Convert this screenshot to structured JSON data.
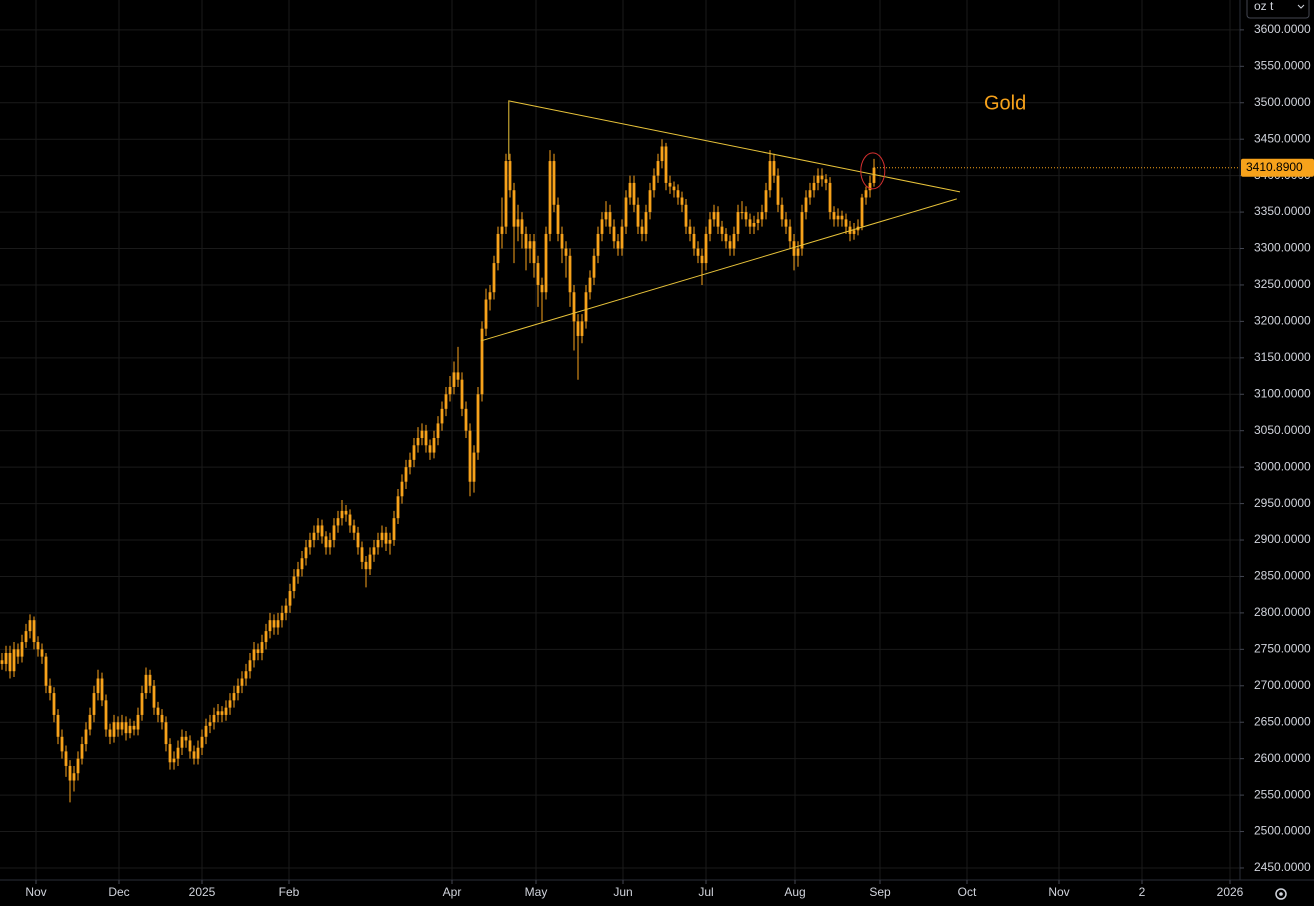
{
  "chart_data": {
    "type": "candlestick",
    "unit": "oz t",
    "annotation": "Gold",
    "color": "#f7a21b",
    "grid": true,
    "last_value_label": "3410.8900",
    "xlim": [
      0,
      310
    ],
    "ylim": [
      2433.5,
      3641
    ],
    "xticks": [
      {
        "value": 9,
        "label": "Nov"
      },
      {
        "value": 29.75,
        "label": "Dec"
      },
      {
        "value": 50.5,
        "label": "2025"
      },
      {
        "value": 72.25,
        "label": "Feb"
      },
      {
        "value": 113,
        "label": "Apr"
      },
      {
        "value": 134,
        "label": "May"
      },
      {
        "value": 155.75,
        "label": "Jun"
      },
      {
        "value": 176.5,
        "label": "Jul"
      },
      {
        "value": 198.75,
        "label": "Aug"
      },
      {
        "value": 220,
        "label": "Sep"
      },
      {
        "value": 241.75,
        "label": "Oct"
      },
      {
        "value": 264.75,
        "label": "Nov"
      },
      {
        "value": 285.5,
        "label": "2"
      },
      {
        "value": 307.5,
        "label": "2026"
      }
    ],
    "yticks": [
      {
        "value": 2450,
        "label": "2450.0000"
      },
      {
        "value": 2500,
        "label": "2500.0000"
      },
      {
        "value": 2550,
        "label": "2550.0000"
      },
      {
        "value": 2600,
        "label": "2600.0000"
      },
      {
        "value": 2650,
        "label": "2650.0000"
      },
      {
        "value": 2700,
        "label": "2700.0000"
      },
      {
        "value": 2750,
        "label": "2750.0000"
      },
      {
        "value": 2800,
        "label": "2800.0000"
      },
      {
        "value": 2850,
        "label": "2850.0000"
      },
      {
        "value": 2900,
        "label": "2900.0000"
      },
      {
        "value": 2950,
        "label": "2950.0000"
      },
      {
        "value": 3000,
        "label": "3000.0000"
      },
      {
        "value": 3050,
        "label": "3050.0000"
      },
      {
        "value": 3100,
        "label": "3100.0000"
      },
      {
        "value": 3150,
        "label": "3150.0000"
      },
      {
        "value": 3200,
        "label": "3200.0000"
      },
      {
        "value": 3250,
        "label": "3250.0000"
      },
      {
        "value": 3300,
        "label": "3300.0000"
      },
      {
        "value": 3350,
        "label": "3350.0000"
      },
      {
        "value": 3400,
        "label": "3400.0000"
      },
      {
        "value": 3450,
        "label": "3450.0000"
      },
      {
        "value": 3500,
        "label": "3500.0000"
      },
      {
        "value": 3550,
        "label": "3550.0000"
      },
      {
        "value": 3600,
        "label": "3600.0000"
      }
    ],
    "trendlines": [
      {
        "color": "#e8c33a",
        "x": [
          127.2,
          127.2,
          240
        ],
        "y": [
          3421.6,
          3502.6,
          3377.7
        ]
      },
      {
        "color": "#e8c33a",
        "x": [
          120.2,
          239.2
        ],
        "y": [
          3173.2,
          3368.1
        ]
      }
    ],
    "highlight": {
      "color": "#d32f2f",
      "x": 218.2,
      "y": 3406.5
    },
    "values": [
      [
        2735,
        2745,
        2722,
        2730
      ],
      [
        2730,
        2755,
        2720,
        2745
      ],
      [
        2745,
        2755,
        2710,
        2720
      ],
      [
        2720,
        2760,
        2712,
        2750
      ],
      [
        2750,
        2758,
        2730,
        2740
      ],
      [
        2740,
        2770,
        2732,
        2760
      ],
      [
        2760,
        2785,
        2752,
        2775
      ],
      [
        2775,
        2798,
        2765,
        2790
      ],
      [
        2790,
        2795,
        2750,
        2760
      ],
      [
        2760,
        2768,
        2740,
        2750
      ],
      [
        2750,
        2758,
        2730,
        2740
      ],
      [
        2740,
        2745,
        2690,
        2700
      ],
      [
        2700,
        2710,
        2680,
        2690
      ],
      [
        2690,
        2698,
        2650,
        2660
      ],
      [
        2660,
        2668,
        2620,
        2630
      ],
      [
        2630,
        2640,
        2600,
        2610
      ],
      [
        2610,
        2618,
        2575,
        2590
      ],
      [
        2590,
        2598,
        2540,
        2570
      ],
      [
        2570,
        2590,
        2555,
        2580
      ],
      [
        2580,
        2610,
        2570,
        2600
      ],
      [
        2600,
        2630,
        2592,
        2620
      ],
      [
        2620,
        2650,
        2610,
        2640
      ],
      [
        2640,
        2670,
        2632,
        2660
      ],
      [
        2660,
        2700,
        2650,
        2690
      ],
      [
        2690,
        2722,
        2680,
        2710
      ],
      [
        2710,
        2718,
        2672,
        2680
      ],
      [
        2680,
        2688,
        2630,
        2640
      ],
      [
        2640,
        2648,
        2620,
        2630
      ],
      [
        2630,
        2660,
        2622,
        2650
      ],
      [
        2650,
        2658,
        2630,
        2640
      ],
      [
        2640,
        2660,
        2632,
        2650
      ],
      [
        2650,
        2658,
        2625,
        2635
      ],
      [
        2635,
        2655,
        2628,
        2645
      ],
      [
        2645,
        2652,
        2632,
        2640
      ],
      [
        2640,
        2670,
        2632,
        2660
      ],
      [
        2660,
        2700,
        2652,
        2690
      ],
      [
        2690,
        2725,
        2682,
        2715
      ],
      [
        2715,
        2722,
        2690,
        2700
      ],
      [
        2700,
        2708,
        2660,
        2670
      ],
      [
        2670,
        2678,
        2650,
        2660
      ],
      [
        2660,
        2668,
        2640,
        2650
      ],
      [
        2650,
        2658,
        2610,
        2620
      ],
      [
        2620,
        2628,
        2585,
        2595
      ],
      [
        2595,
        2610,
        2585,
        2600
      ],
      [
        2600,
        2625,
        2590,
        2615
      ],
      [
        2615,
        2640,
        2605,
        2630
      ],
      [
        2630,
        2638,
        2615,
        2625
      ],
      [
        2625,
        2632,
        2600,
        2610
      ],
      [
        2610,
        2618,
        2592,
        2600
      ],
      [
        2600,
        2625,
        2592,
        2615
      ],
      [
        2615,
        2640,
        2605,
        2630
      ],
      [
        2630,
        2655,
        2620,
        2645
      ],
      [
        2645,
        2660,
        2635,
        2650
      ],
      [
        2650,
        2670,
        2640,
        2660
      ],
      [
        2660,
        2675,
        2650,
        2665
      ],
      [
        2665,
        2672,
        2650,
        2660
      ],
      [
        2660,
        2680,
        2652,
        2670
      ],
      [
        2670,
        2690,
        2660,
        2680
      ],
      [
        2680,
        2700,
        2670,
        2690
      ],
      [
        2690,
        2710,
        2680,
        2700
      ],
      [
        2700,
        2720,
        2690,
        2710
      ],
      [
        2710,
        2730,
        2700,
        2720
      ],
      [
        2720,
        2745,
        2710,
        2735
      ],
      [
        2735,
        2760,
        2725,
        2750
      ],
      [
        2750,
        2758,
        2735,
        2745
      ],
      [
        2745,
        2770,
        2735,
        2760
      ],
      [
        2760,
        2785,
        2750,
        2775
      ],
      [
        2775,
        2800,
        2765,
        2790
      ],
      [
        2790,
        2798,
        2770,
        2780
      ],
      [
        2780,
        2800,
        2770,
        2790
      ],
      [
        2790,
        2810,
        2780,
        2800
      ],
      [
        2800,
        2820,
        2790,
        2810
      ],
      [
        2810,
        2840,
        2800,
        2830
      ],
      [
        2830,
        2860,
        2820,
        2850
      ],
      [
        2850,
        2870,
        2840,
        2860
      ],
      [
        2860,
        2885,
        2850,
        2875
      ],
      [
        2875,
        2900,
        2865,
        2890
      ],
      [
        2890,
        2910,
        2880,
        2900
      ],
      [
        2900,
        2920,
        2890,
        2910
      ],
      [
        2910,
        2930,
        2900,
        2920
      ],
      [
        2920,
        2928,
        2895,
        2905
      ],
      [
        2905,
        2912,
        2880,
        2890
      ],
      [
        2890,
        2910,
        2880,
        2900
      ],
      [
        2900,
        2930,
        2890,
        2920
      ],
      [
        2920,
        2940,
        2910,
        2930
      ],
      [
        2930,
        2955,
        2920,
        2940
      ],
      [
        2940,
        2948,
        2925,
        2935
      ],
      [
        2935,
        2942,
        2910,
        2920
      ],
      [
        2920,
        2928,
        2900,
        2910
      ],
      [
        2910,
        2918,
        2880,
        2890
      ],
      [
        2890,
        2898,
        2860,
        2870
      ],
      [
        2870,
        2878,
        2835,
        2860
      ],
      [
        2860,
        2890,
        2852,
        2880
      ],
      [
        2880,
        2900,
        2870,
        2890
      ],
      [
        2890,
        2910,
        2880,
        2900
      ],
      [
        2900,
        2920,
        2890,
        2910
      ],
      [
        2910,
        2918,
        2885,
        2895
      ],
      [
        2895,
        2910,
        2880,
        2900
      ],
      [
        2900,
        2940,
        2892,
        2930
      ],
      [
        2930,
        2970,
        2922,
        2960
      ],
      [
        2960,
        2990,
        2950,
        2980
      ],
      [
        2980,
        3010,
        2970,
        3000
      ],
      [
        3000,
        3020,
        2990,
        3010
      ],
      [
        3010,
        3040,
        3000,
        3030
      ],
      [
        3030,
        3055,
        3020,
        3040
      ],
      [
        3040,
        3060,
        3030,
        3050
      ],
      [
        3050,
        3058,
        3020,
        3030
      ],
      [
        3030,
        3038,
        3010,
        3020
      ],
      [
        3020,
        3050,
        3012,
        3040
      ],
      [
        3040,
        3070,
        3030,
        3060
      ],
      [
        3060,
        3090,
        3050,
        3080
      ],
      [
        3080,
        3110,
        3070,
        3100
      ],
      [
        3100,
        3125,
        3090,
        3110
      ],
      [
        3110,
        3145,
        3100,
        3130
      ],
      [
        3130,
        3165,
        3110,
        3120
      ],
      [
        3120,
        3130,
        3070,
        3080
      ],
      [
        3080,
        3090,
        3040,
        3050
      ],
      [
        3050,
        3060,
        2960,
        2980
      ],
      [
        2980,
        3030,
        2965,
        3020
      ],
      [
        3020,
        3110,
        3010,
        3100
      ],
      [
        3100,
        3200,
        3090,
        3190
      ],
      [
        3190,
        3245,
        3180,
        3230
      ],
      [
        3230,
        3250,
        3215,
        3240
      ],
      [
        3240,
        3290,
        3230,
        3280
      ],
      [
        3280,
        3330,
        3270,
        3320
      ],
      [
        3320,
        3370,
        3300,
        3330
      ],
      [
        3330,
        3430,
        3320,
        3420
      ],
      [
        3420,
        3430,
        3370,
        3380
      ],
      [
        3380,
        3390,
        3280,
        3330
      ],
      [
        3330,
        3360,
        3310,
        3340
      ],
      [
        3340,
        3350,
        3300,
        3320
      ],
      [
        3320,
        3330,
        3270,
        3300
      ],
      [
        3300,
        3320,
        3280,
        3310
      ],
      [
        3310,
        3320,
        3260,
        3280
      ],
      [
        3280,
        3290,
        3220,
        3250
      ],
      [
        3250,
        3260,
        3200,
        3240
      ],
      [
        3240,
        3330,
        3230,
        3320
      ],
      [
        3320,
        3435,
        3310,
        3420
      ],
      [
        3420,
        3430,
        3350,
        3360
      ],
      [
        3360,
        3370,
        3310,
        3320
      ],
      [
        3320,
        3330,
        3280,
        3300
      ],
      [
        3300,
        3310,
        3260,
        3290
      ],
      [
        3290,
        3300,
        3220,
        3240
      ],
      [
        3240,
        3250,
        3160,
        3200
      ],
      [
        3200,
        3210,
        3120,
        3180
      ],
      [
        3180,
        3210,
        3170,
        3200
      ],
      [
        3200,
        3250,
        3190,
        3240
      ],
      [
        3240,
        3270,
        3230,
        3260
      ],
      [
        3260,
        3300,
        3250,
        3290
      ],
      [
        3290,
        3330,
        3280,
        3320
      ],
      [
        3320,
        3350,
        3310,
        3340
      ],
      [
        3340,
        3365,
        3330,
        3350
      ],
      [
        3350,
        3360,
        3320,
        3330
      ],
      [
        3330,
        3340,
        3300,
        3310
      ],
      [
        3310,
        3320,
        3290,
        3300
      ],
      [
        3300,
        3340,
        3290,
        3330
      ],
      [
        3330,
        3380,
        3320,
        3370
      ],
      [
        3370,
        3400,
        3360,
        3390
      ],
      [
        3390,
        3400,
        3350,
        3360
      ],
      [
        3360,
        3370,
        3320,
        3330
      ],
      [
        3330,
        3340,
        3310,
        3320
      ],
      [
        3320,
        3360,
        3310,
        3350
      ],
      [
        3350,
        3390,
        3340,
        3380
      ],
      [
        3380,
        3410,
        3370,
        3400
      ],
      [
        3400,
        3430,
        3390,
        3420
      ],
      [
        3420,
        3450,
        3410,
        3440
      ],
      [
        3440,
        3445,
        3380,
        3390
      ],
      [
        3390,
        3400,
        3375,
        3385
      ],
      [
        3385,
        3392,
        3370,
        3380
      ],
      [
        3380,
        3388,
        3360,
        3370
      ],
      [
        3370,
        3378,
        3350,
        3360
      ],
      [
        3360,
        3368,
        3320,
        3330
      ],
      [
        3330,
        3340,
        3310,
        3320
      ],
      [
        3320,
        3330,
        3290,
        3300
      ],
      [
        3300,
        3310,
        3280,
        3290
      ],
      [
        3290,
        3300,
        3250,
        3280
      ],
      [
        3280,
        3330,
        3270,
        3320
      ],
      [
        3320,
        3350,
        3310,
        3340
      ],
      [
        3340,
        3360,
        3330,
        3350
      ],
      [
        3350,
        3358,
        3320,
        3330
      ],
      [
        3330,
        3338,
        3310,
        3320
      ],
      [
        3320,
        3328,
        3300,
        3310
      ],
      [
        3310,
        3318,
        3290,
        3300
      ],
      [
        3300,
        3330,
        3290,
        3320
      ],
      [
        3320,
        3360,
        3310,
        3350
      ],
      [
        3350,
        3365,
        3340,
        3350
      ],
      [
        3350,
        3358,
        3330,
        3340
      ],
      [
        3340,
        3348,
        3320,
        3330
      ],
      [
        3330,
        3345,
        3320,
        3335
      ],
      [
        3335,
        3350,
        3325,
        3340
      ],
      [
        3340,
        3360,
        3330,
        3350
      ],
      [
        3350,
        3390,
        3340,
        3380
      ],
      [
        3380,
        3435,
        3370,
        3420
      ],
      [
        3420,
        3430,
        3390,
        3400
      ],
      [
        3400,
        3410,
        3350,
        3360
      ],
      [
        3360,
        3370,
        3330,
        3340
      ],
      [
        3340,
        3350,
        3320,
        3330
      ],
      [
        3330,
        3340,
        3300,
        3310
      ],
      [
        3310,
        3320,
        3270,
        3290
      ],
      [
        3290,
        3310,
        3275,
        3300
      ],
      [
        3300,
        3360,
        3290,
        3350
      ],
      [
        3350,
        3380,
        3340,
        3370
      ],
      [
        3370,
        3390,
        3360,
        3380
      ],
      [
        3380,
        3400,
        3370,
        3390
      ],
      [
        3390,
        3410,
        3380,
        3400
      ],
      [
        3400,
        3410,
        3385,
        3395
      ],
      [
        3395,
        3402,
        3380,
        3390
      ],
      [
        3390,
        3398,
        3340,
        3350
      ],
      [
        3350,
        3358,
        3330,
        3340
      ],
      [
        3340,
        3355,
        3330,
        3345
      ],
      [
        3345,
        3352,
        3330,
        3340
      ],
      [
        3340,
        3348,
        3320,
        3330
      ],
      [
        3330,
        3338,
        3310,
        3320
      ],
      [
        3320,
        3335,
        3312,
        3325
      ],
      [
        3325,
        3340,
        3318,
        3330
      ],
      [
        3330,
        3375,
        3325,
        3370
      ],
      [
        3370,
        3385,
        3360,
        3380
      ],
      [
        3380,
        3400,
        3370,
        3390
      ],
      [
        3390,
        3423,
        3385,
        3410.89
      ]
    ]
  }
}
